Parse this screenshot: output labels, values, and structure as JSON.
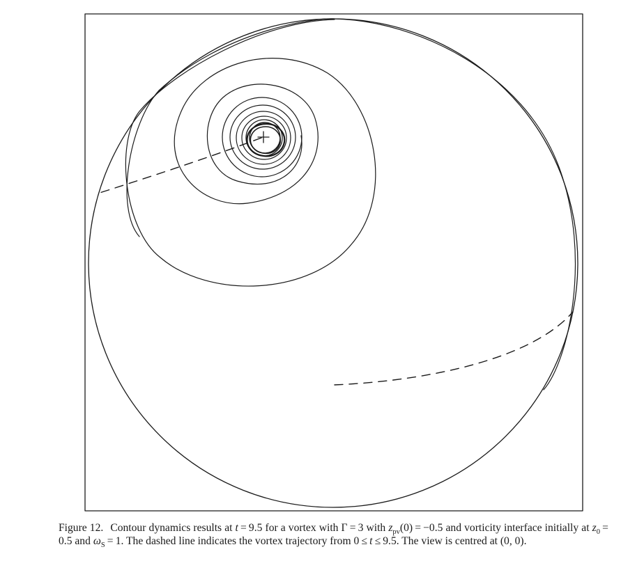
{
  "figure": {
    "label": "Figure 12.",
    "caption_parts": {
      "p1": "Contour dynamics results at ",
      "t": "t",
      "p2": " = 9.5 for a vortex with Γ = 3 with ",
      "z": "z",
      "pv": "pv",
      "p3": "(0) = −0.5 and vorticity interface initially at ",
      "z0": "z",
      "zero": "0",
      "p4": " = 0.5 and ",
      "omega": "ω",
      "S": "S",
      "p5": " = 1. The dashed line indicates the vortex trajectory from 0 ≤ ",
      "t2": "t",
      "p6": " ≤ 9.5. The view is centred at (0, 0)."
    }
  },
  "plot": {
    "stroke_color": "#1a1a1a",
    "marker": "+",
    "line_styles": {
      "contours": "solid",
      "trajectory": "dashed"
    }
  }
}
